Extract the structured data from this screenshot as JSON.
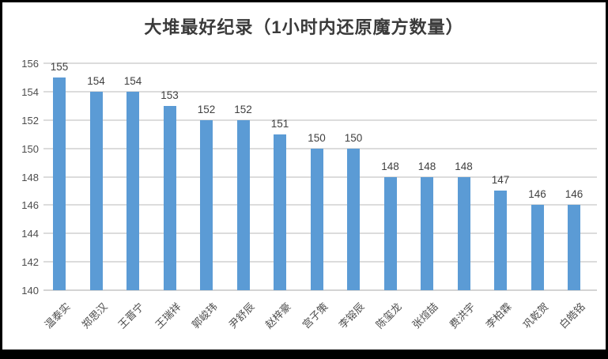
{
  "chart_data": {
    "type": "bar",
    "title": "大堆最好纪录（1小时内还原魔方数量）",
    "categories": [
      "温泰实",
      "郑思汉",
      "王晋宁",
      "王瑞祥",
      "郭峻玮",
      "尹舒辰",
      "赵梓豪",
      "宫子策",
      "李镕辰",
      "陈玺龙",
      "张煊喆",
      "费洪宇",
      "李柏霖",
      "巩乾贺",
      "白皓铭"
    ],
    "values": [
      155,
      154,
      154,
      153,
      152,
      152,
      151,
      150,
      150,
      148,
      148,
      148,
      147,
      146,
      146
    ],
    "xlabel": "",
    "ylabel": "",
    "ylim": [
      140,
      156
    ],
    "ytick_step": 2,
    "grid": true,
    "data_labels": true,
    "legend": "none",
    "colors": {
      "bar": "#5B9BD5",
      "gridline": "#dcdcdc",
      "tick_text": "#4d4d4d",
      "data_label_text": "#404040",
      "title_text": "#3a3a3a",
      "frame_border": "#000000"
    }
  }
}
